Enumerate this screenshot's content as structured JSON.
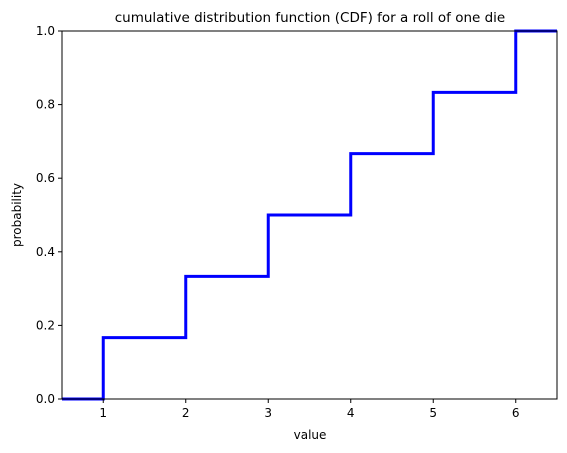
{
  "chart_data": {
    "type": "line",
    "drawstyle": "steps-post",
    "title": "cumulative distribution function (CDF) for a roll of one die",
    "xlabel": "value",
    "ylabel": "probability",
    "xlim": [
      0.5,
      6.5
    ],
    "ylim": [
      0.0,
      1.0
    ],
    "xticks": [
      1,
      2,
      3,
      4,
      5,
      6
    ],
    "xtick_labels": [
      "1",
      "2",
      "3",
      "4",
      "5",
      "6"
    ],
    "yticks": [
      0.0,
      0.2,
      0.4,
      0.6,
      0.8,
      1.0
    ],
    "ytick_labels": [
      "0.0",
      "0.2",
      "0.4",
      "0.6",
      "0.8",
      "1.0"
    ],
    "grid": false,
    "series": [
      {
        "name": "CDF",
        "color": "#0000ff",
        "x": [
          0.5,
          1,
          2,
          3,
          4,
          5,
          6,
          6.5
        ],
        "y": [
          0.0,
          0.1667,
          0.3333,
          0.5,
          0.6667,
          0.8333,
          1.0,
          1.0
        ]
      }
    ]
  }
}
